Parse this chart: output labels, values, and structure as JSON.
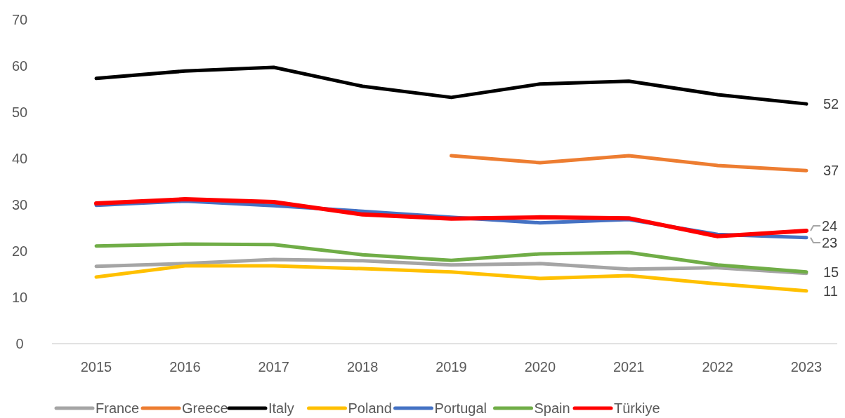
{
  "chart_data": {
    "type": "line",
    "categories": [
      "2015",
      "2016",
      "2017",
      "2018",
      "2019",
      "2020",
      "2021",
      "2022",
      "2023"
    ],
    "series": [
      {
        "name": "France",
        "color": "#a5a5a5",
        "values": [
          16.7,
          17.3,
          18.2,
          17.9,
          17.0,
          17.3,
          16.1,
          16.4,
          15.2
        ]
      },
      {
        "name": "Greece",
        "color": "#ed7d31",
        "values": [
          null,
          null,
          null,
          null,
          40.6,
          39.1,
          40.6,
          38.5,
          37.4
        ],
        "value_labels": [
          null,
          null,
          null,
          null,
          null,
          null,
          null,
          null,
          "37"
        ]
      },
      {
        "name": "Italy",
        "color": "#000000",
        "values": [
          57.3,
          58.9,
          59.7,
          55.6,
          53.2,
          56.1,
          56.7,
          53.8,
          51.8
        ],
        "value_labels": [
          null,
          null,
          null,
          null,
          null,
          null,
          null,
          null,
          "52"
        ]
      },
      {
        "name": "Poland",
        "color": "#ffc000",
        "values": [
          14.4,
          16.8,
          16.8,
          16.2,
          15.5,
          14.1,
          14.7,
          12.9,
          11.4
        ],
        "value_labels": [
          null,
          null,
          null,
          null,
          null,
          null,
          null,
          null,
          "11"
        ]
      },
      {
        "name": "Portugal",
        "color": "#4472c4",
        "values": [
          29.9,
          30.8,
          29.8,
          28.6,
          27.3,
          26.1,
          26.8,
          23.6,
          22.9
        ],
        "value_labels": [
          null,
          null,
          null,
          null,
          null,
          null,
          null,
          null,
          "23"
        ]
      },
      {
        "name": "Spain",
        "color": "#70ad47",
        "values": [
          21.1,
          21.5,
          21.4,
          19.2,
          18.0,
          19.4,
          19.7,
          17.0,
          15.5
        ],
        "value_labels": [
          null,
          null,
          null,
          null,
          null,
          null,
          null,
          null,
          "15"
        ]
      },
      {
        "name": "Türkiye",
        "color": "#ff0000",
        "values": [
          30.3,
          31.2,
          30.6,
          27.9,
          27.0,
          27.3,
          27.1,
          23.2,
          24.4
        ],
        "value_labels": [
          null,
          null,
          null,
          null,
          null,
          null,
          null,
          null,
          "24"
        ]
      }
    ],
    "ylim": [
      0,
      70
    ],
    "yticks": [
      0,
      10,
      20,
      30,
      40,
      50,
      60,
      70
    ],
    "grid": false,
    "legend": "bottom",
    "marker": "none",
    "line_style": "solid"
  }
}
